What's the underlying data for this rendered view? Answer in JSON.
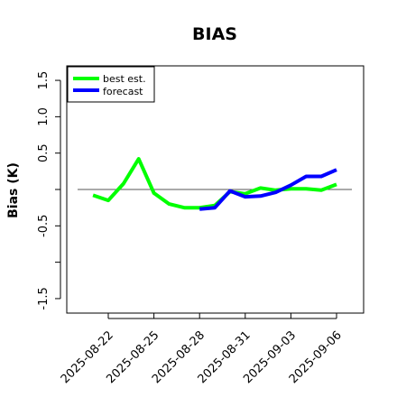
{
  "chart_data": {
    "type": "line",
    "title": "BIAS",
    "xlabel": "",
    "ylabel": "Bias (K)",
    "ylim": [
      -1.6,
      1.6
    ],
    "y_ticks": [
      -1.5,
      -1.0,
      -0.5,
      0.0,
      0.5,
      1.0,
      1.5
    ],
    "y_tick_labels": [
      "-1.5",
      "",
      "-0.5",
      "",
      "0.5",
      "1.0",
      "1.5"
    ],
    "x_tick_labels": [
      "2025-08-22",
      "2025-08-25",
      "2025-08-28",
      "2025-08-31",
      "2025-09-03",
      "2025-09-06"
    ],
    "highlight_tick_label": "2025-08-28",
    "highlight_color": "#228B22",
    "reference_line": 0,
    "grid": false,
    "legend_position": "top-left",
    "series": [
      {
        "name": "best est.",
        "color": "#00FF00",
        "x": [
          "2025-08-21",
          "2025-08-22",
          "2025-08-23",
          "2025-08-24",
          "2025-08-25",
          "2025-08-26",
          "2025-08-27",
          "2025-08-28",
          "2025-08-29",
          "2025-08-30",
          "2025-08-31",
          "2025-09-01",
          "2025-09-02",
          "2025-09-03",
          "2025-09-04",
          "2025-09-05",
          "2025-09-06"
        ],
        "values": [
          -0.08,
          -0.15,
          0.08,
          0.42,
          -0.05,
          -0.2,
          -0.25,
          -0.25,
          -0.22,
          -0.03,
          -0.06,
          0.02,
          -0.01,
          0.01,
          0.01,
          -0.01,
          0.07
        ]
      },
      {
        "name": "forecast",
        "color": "#0000FF",
        "x": [
          "2025-08-28",
          "2025-08-29",
          "2025-08-30",
          "2025-08-31",
          "2025-09-01",
          "2025-09-02",
          "2025-09-03",
          "2025-09-04",
          "2025-09-05",
          "2025-09-06"
        ],
        "values": [
          -0.27,
          -0.25,
          -0.02,
          -0.1,
          -0.09,
          -0.04,
          0.06,
          0.18,
          0.18,
          0.27
        ]
      }
    ]
  }
}
